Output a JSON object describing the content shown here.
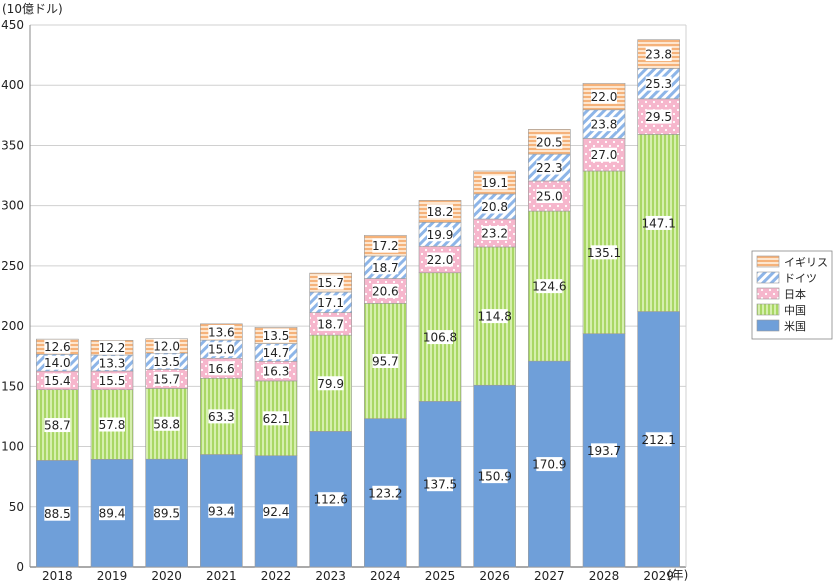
{
  "chart_data": {
    "type": "bar",
    "stacked": true,
    "ylabel": "(10億ドル)",
    "xunit": "(年)",
    "ylim": [
      0,
      450
    ],
    "yticks": [
      0,
      50,
      100,
      150,
      200,
      250,
      300,
      350,
      400,
      450
    ],
    "categories": [
      "2018",
      "2019",
      "2020",
      "2021",
      "2022",
      "2023",
      "2024",
      "2025",
      "2026",
      "2027",
      "2028",
      "2029"
    ],
    "legend_position": "right",
    "series": [
      {
        "name": "米国",
        "color": "#6f9fd9",
        "pattern": "solid",
        "values": [
          88.5,
          89.4,
          89.5,
          93.4,
          92.4,
          112.6,
          123.2,
          137.5,
          150.9,
          170.9,
          193.7,
          212.1
        ]
      },
      {
        "name": "中国",
        "color": "#b9e07a",
        "pattern": "vertical-stripes",
        "values": [
          58.7,
          57.8,
          58.8,
          63.3,
          62.1,
          79.9,
          95.7,
          106.8,
          114.8,
          124.6,
          135.1,
          147.1
        ]
      },
      {
        "name": "日本",
        "color": "#f6b6cc",
        "pattern": "dots",
        "values": [
          15.4,
          15.5,
          15.7,
          16.6,
          16.3,
          18.7,
          20.6,
          22.0,
          23.2,
          25.0,
          27.0,
          29.5
        ]
      },
      {
        "name": "ドイツ",
        "color": "#9cc0ec",
        "pattern": "diagonal-stripes",
        "values": [
          14.0,
          13.3,
          13.5,
          15.0,
          14.7,
          17.1,
          18.7,
          19.9,
          20.8,
          22.3,
          23.8,
          25.3
        ]
      },
      {
        "name": "イギリス",
        "color": "#f7c493",
        "pattern": "horizontal-stripes",
        "values": [
          12.6,
          12.2,
          12.0,
          13.6,
          13.5,
          15.7,
          17.2,
          18.2,
          19.1,
          20.5,
          22.0,
          23.8
        ]
      }
    ],
    "legend_order": [
      "イギリス",
      "ドイツ",
      "日本",
      "中国",
      "米国"
    ]
  }
}
